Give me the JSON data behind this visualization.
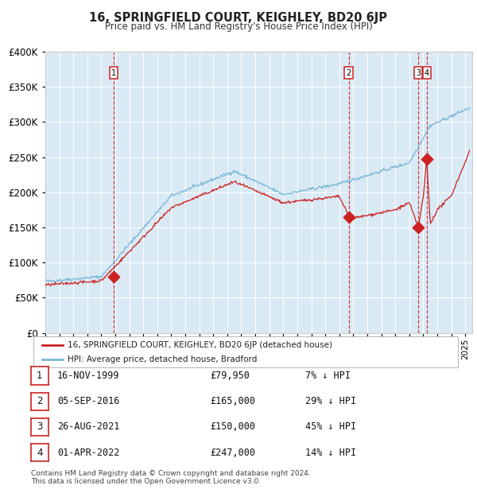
{
  "title": "16, SPRINGFIELD COURT, KEIGHLEY, BD20 6JP",
  "subtitle": "Price paid vs. HM Land Registry's House Price Index (HPI)",
  "legend_label_red": "16, SPRINGFIELD COURT, KEIGHLEY, BD20 6JP (detached house)",
  "legend_label_blue": "HPI: Average price, detached house, Bradford",
  "footer_line1": "Contains HM Land Registry data © Crown copyright and database right 2024.",
  "footer_line2": "This data is licensed under the Open Government Licence v3.0.",
  "sales": [
    {
      "num": 1,
      "date_label": "16-NOV-1999",
      "price_label": "£79,950",
      "pct_label": "7% ↓ HPI",
      "year": 1999.88,
      "price": 79950
    },
    {
      "num": 2,
      "date_label": "05-SEP-2016",
      "price_label": "£165,000",
      "pct_label": "29% ↓ HPI",
      "year": 2016.68,
      "price": 165000
    },
    {
      "num": 3,
      "date_label": "26-AUG-2021",
      "price_label": "£150,000",
      "pct_label": "45% ↓ HPI",
      "year": 2021.65,
      "price": 150000
    },
    {
      "num": 4,
      "date_label": "01-APR-2022",
      "price_label": "£247,000",
      "pct_label": "14% ↓ HPI",
      "year": 2022.25,
      "price": 247000
    }
  ],
  "hpi_color": "#7ab8d9",
  "sale_color": "#cc2222",
  "grid_color": "#ffffff",
  "plot_bg": "#daeaf5",
  "ylim": [
    0,
    400000
  ],
  "xlim_start": 1995.0,
  "xlim_end": 2025.5,
  "yticks": [
    0,
    50000,
    100000,
    150000,
    200000,
    250000,
    300000,
    350000,
    400000
  ],
  "hpi_seed_data": {
    "segments": [
      [
        1995.0,
        73000
      ],
      [
        1999.0,
        80000
      ],
      [
        2004.0,
        195000
      ],
      [
        2008.5,
        230000
      ],
      [
        2012.0,
        197000
      ],
      [
        2016.0,
        212000
      ],
      [
        2021.0,
        242000
      ],
      [
        2022.5,
        295000
      ],
      [
        2025.3,
        320000
      ]
    ]
  },
  "red_seed_data": {
    "segments": [
      [
        1995.0,
        68000
      ],
      [
        1999.0,
        74000
      ],
      [
        2004.0,
        178000
      ],
      [
        2008.5,
        215000
      ],
      [
        2012.0,
        185000
      ],
      [
        2016.0,
        194000
      ],
      [
        2016.7,
        165000
      ],
      [
        2017.0,
        163000
      ],
      [
        2020.0,
        175000
      ],
      [
        2021.0,
        185000
      ],
      [
        2021.65,
        150000
      ],
      [
        2022.0,
        193000
      ],
      [
        2022.25,
        247000
      ],
      [
        2022.5,
        155000
      ],
      [
        2023.0,
        175000
      ],
      [
        2024.0,
        195000
      ],
      [
        2025.3,
        258000
      ]
    ]
  }
}
